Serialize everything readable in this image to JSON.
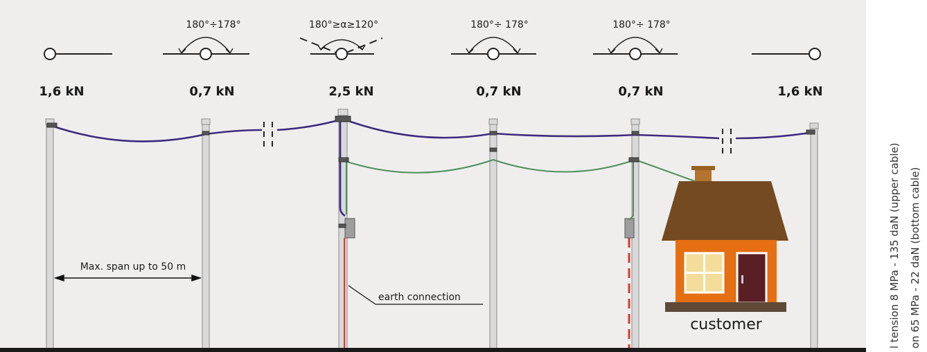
{
  "loads": [
    "1,6 kN",
    "0,7 kN",
    "2,5 kN",
    "0,7 kN",
    "0,7 kN",
    "1,6 kN"
  ],
  "angles": [
    "180°÷178°",
    "180°≥α≥120°",
    "180°÷ 178°",
    "180°÷ 178°"
  ],
  "span_label": "Max. span up to 50 m",
  "earth_label": "earth connection",
  "customer_label": "customer",
  "side_notes": [
    "l tension 8 MPa - 135 daN (upper cable)",
    "on 65 MPa - 22 daN (bottom cable)"
  ],
  "colors": {
    "background": "#efeeed",
    "upper_cable": "#3d2a7d",
    "bottom_cable": "#4e8f5b",
    "earth": "#d23b2d",
    "roof": "#744a21",
    "wall": "#e56f12",
    "door": "#5a1f25",
    "window": "#f4dc9b",
    "pole": "#d9d9d9"
  }
}
